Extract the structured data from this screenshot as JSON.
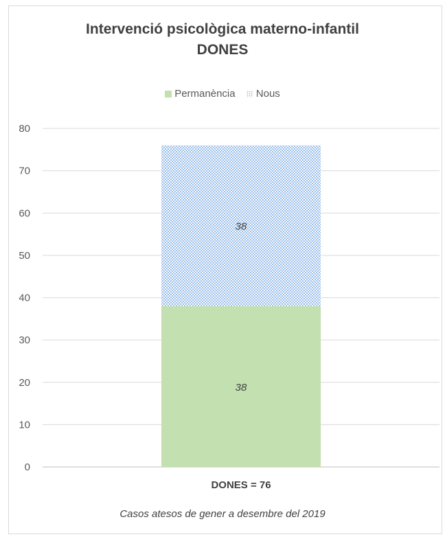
{
  "chart_data": {
    "type": "bar",
    "stacked": true,
    "title_lines": [
      "Intervenció psicològica  materno-infantil",
      "DONES"
    ],
    "categories": [
      "DONES  =  76"
    ],
    "series": [
      {
        "name": "Permanència",
        "values": [
          38
        ],
        "color": "#c3e0b0"
      },
      {
        "name": "Nous",
        "values": [
          38
        ],
        "color": "#9dc3ea"
      }
    ],
    "data_labels": [
      "38",
      "38"
    ],
    "ylim": [
      0,
      80
    ],
    "yticks": [
      0,
      10,
      20,
      30,
      40,
      50,
      60,
      70,
      80
    ],
    "grid": true,
    "legend_position": "top",
    "footnote": "Casos atesos de gener a desembre del 2019"
  }
}
